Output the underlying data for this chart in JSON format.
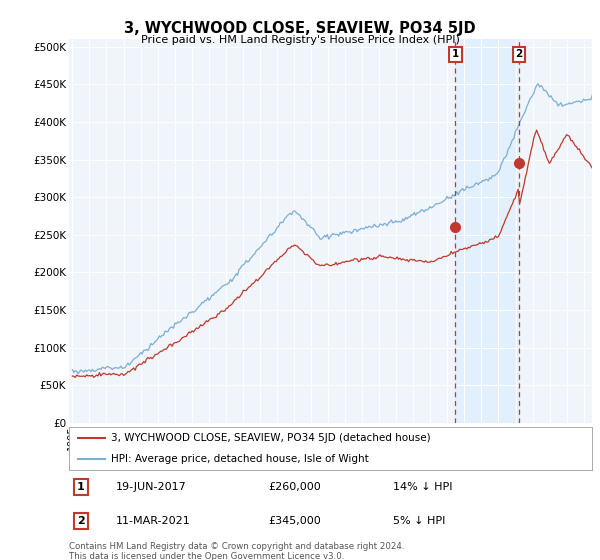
{
  "title": "3, WYCHWOOD CLOSE, SEAVIEW, PO34 5JD",
  "subtitle": "Price paid vs. HM Land Registry's House Price Index (HPI)",
  "legend_line1": "3, WYCHWOOD CLOSE, SEAVIEW, PO34 5JD (detached house)",
  "legend_line2": "HPI: Average price, detached house, Isle of Wight",
  "annotation1_date": "19-JUN-2017",
  "annotation1_price": "£260,000",
  "annotation1_hpi": "14% ↓ HPI",
  "annotation1_year": 2017.47,
  "annotation1_value": 260000,
  "annotation2_date": "11-MAR-2021",
  "annotation2_price": "£345,000",
  "annotation2_hpi": "5% ↓ HPI",
  "annotation2_year": 2021.19,
  "annotation2_value": 345000,
  "footnote": "Contains HM Land Registry data © Crown copyright and database right 2024.\nThis data is licensed under the Open Government Licence v3.0.",
  "hpi_color": "#7bafd4",
  "price_color": "#c0392b",
  "dot_color": "#c0392b",
  "shade_color": "#ddeeff",
  "background_color": "#ffffff",
  "plot_bg_color": "#f0f4fb",
  "ylim_max": 510000,
  "xlim_start": 1994.8,
  "xlim_end": 2025.5
}
